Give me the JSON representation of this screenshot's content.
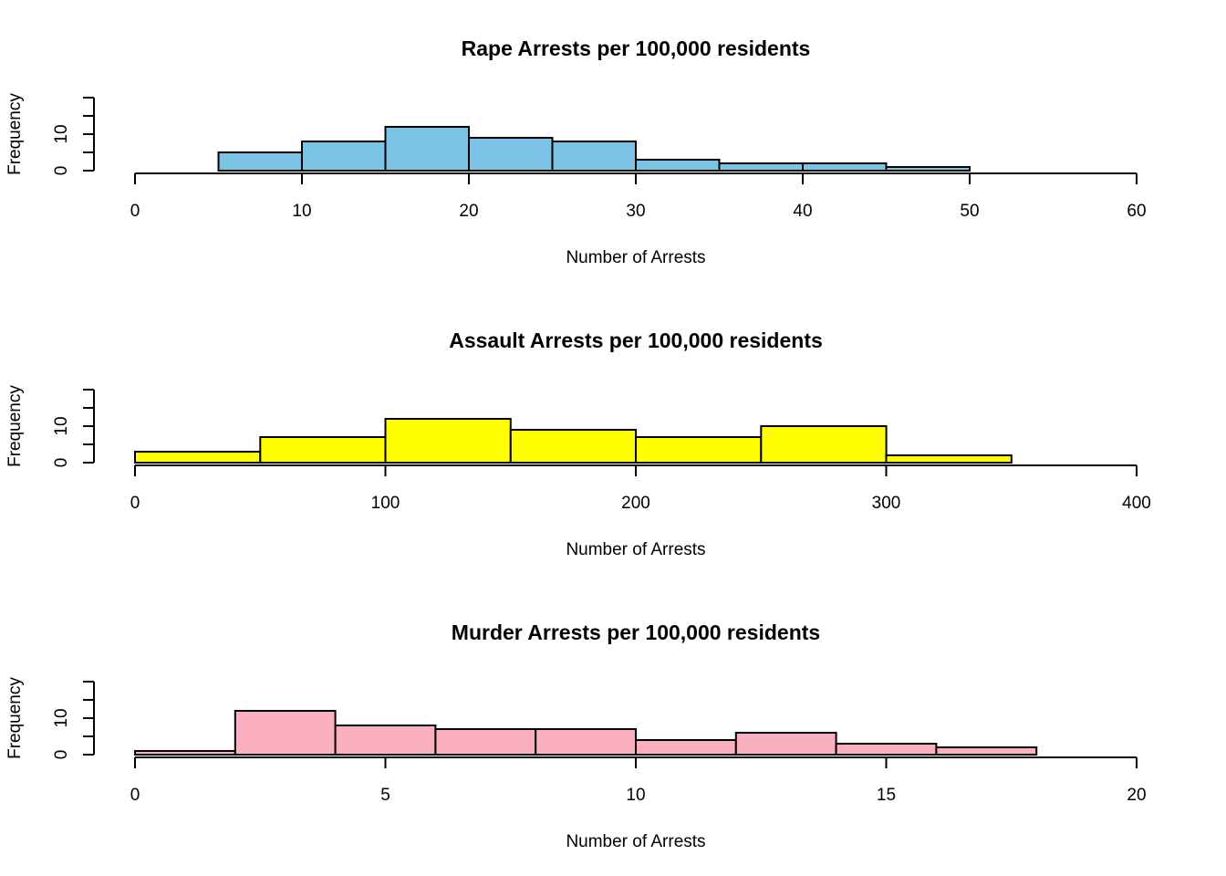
{
  "chart_data": [
    {
      "type": "bar",
      "title": "Rape Arrests per 100,000 residents",
      "xlabel": "Number of Arrests",
      "ylabel": "Frequency",
      "bins": [
        [
          5,
          10
        ],
        [
          10,
          15
        ],
        [
          15,
          20
        ],
        [
          20,
          25
        ],
        [
          25,
          30
        ],
        [
          30,
          35
        ],
        [
          35,
          40
        ],
        [
          40,
          45
        ],
        [
          45,
          50
        ]
      ],
      "values": [
        5,
        8,
        12,
        9,
        8,
        3,
        2,
        2,
        1
      ],
      "xlim": [
        0,
        60
      ],
      "ylim": [
        0,
        20
      ],
      "x_ticks": [
        0,
        10,
        20,
        30,
        40,
        50,
        60
      ],
      "y_ticks": [
        0,
        5,
        10,
        15,
        20
      ],
      "y_tick_labels": [
        "0",
        "",
        "10",
        "",
        ""
      ],
      "fill": "#7BC4E5",
      "grid": false
    },
    {
      "type": "bar",
      "title": "Assault Arrests per 100,000 residents",
      "xlabel": "Number of Arrests",
      "ylabel": "Frequency",
      "bins": [
        [
          0,
          50
        ],
        [
          50,
          100
        ],
        [
          100,
          150
        ],
        [
          150,
          200
        ],
        [
          200,
          250
        ],
        [
          250,
          300
        ],
        [
          300,
          350
        ]
      ],
      "values": [
        3,
        7,
        12,
        9,
        7,
        10,
        2
      ],
      "xlim": [
        0,
        400
      ],
      "ylim": [
        0,
        20
      ],
      "x_ticks": [
        0,
        100,
        200,
        300,
        400
      ],
      "y_ticks": [
        0,
        5,
        10,
        15,
        20
      ],
      "y_tick_labels": [
        "0",
        "",
        "10",
        "",
        ""
      ],
      "fill": "#FFFF00",
      "grid": false
    },
    {
      "type": "bar",
      "title": "Murder Arrests per 100,000 residents",
      "xlabel": "Number of Arrests",
      "ylabel": "Frequency",
      "bins": [
        [
          0,
          2
        ],
        [
          2,
          4
        ],
        [
          4,
          6
        ],
        [
          6,
          8
        ],
        [
          8,
          10
        ],
        [
          10,
          12
        ],
        [
          12,
          14
        ],
        [
          14,
          16
        ],
        [
          16,
          18
        ]
      ],
      "values": [
        1,
        12,
        8,
        7,
        7,
        4,
        6,
        3,
        2
      ],
      "xlim": [
        0,
        20
      ],
      "ylim": [
        0,
        20
      ],
      "x_ticks": [
        0,
        5,
        10,
        15,
        20
      ],
      "y_ticks": [
        0,
        5,
        10,
        15,
        20
      ],
      "y_tick_labels": [
        "0",
        "",
        "10",
        "",
        ""
      ],
      "fill": "#FBB0C0",
      "grid": false
    }
  ]
}
